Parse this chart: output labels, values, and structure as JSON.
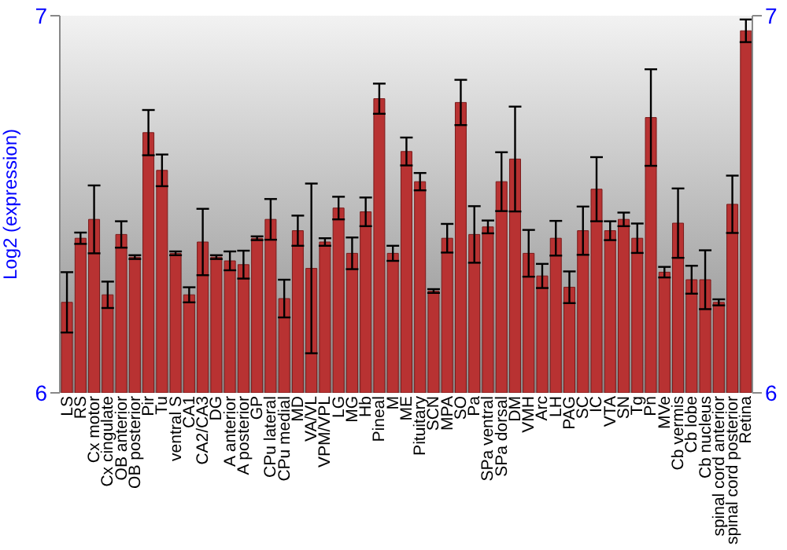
{
  "chart_data": {
    "type": "bar",
    "ylabel": "Log2 (expression)",
    "categories": [
      "LS",
      "RS",
      "Cx motor",
      "Cx cingulate",
      "OB anterior",
      "OB posterior",
      "Pir",
      "Tu",
      "ventral S",
      "CA1",
      "CA2/CA3",
      "DG",
      "A anterior",
      "A posterior",
      "GP",
      "CPu lateral",
      "CPu medial",
      "MD",
      "VA/VL",
      "VPM/VPL",
      "LG",
      "MG",
      "Hb",
      "Pineal",
      "M",
      "ME",
      "Pituitary",
      "SCN",
      "MPA",
      "SO",
      "Pa",
      "SPa ventral",
      "SPa dorsal",
      "DM",
      "VMH",
      "Arc",
      "LH",
      "PAG",
      "SC",
      "IC",
      "VTA",
      "SN",
      "Tg",
      "Pn",
      "MVe",
      "Cb vermis",
      "Cb lobe",
      "Cb nucleus",
      "spinal cord anterior",
      "spinal cord posterior",
      "Retina"
    ],
    "values": [
      6.24,
      6.41,
      6.46,
      6.26,
      6.42,
      6.36,
      6.69,
      6.59,
      6.37,
      6.26,
      6.4,
      6.36,
      6.35,
      6.34,
      6.41,
      6.46,
      6.25,
      6.43,
      6.33,
      6.4,
      6.49,
      6.37,
      6.48,
      6.78,
      6.37,
      6.64,
      6.56,
      6.27,
      6.41,
      6.77,
      6.42,
      6.44,
      6.56,
      6.62,
      6.37,
      6.31,
      6.41,
      6.28,
      6.43,
      6.54,
      6.43,
      6.46,
      6.41,
      6.73,
      6.32,
      6.45,
      6.3,
      6.3,
      6.24,
      6.5,
      6.96
    ],
    "errors": [
      0.08,
      0.015,
      0.09,
      0.035,
      0.035,
      0.005,
      0.06,
      0.042,
      0.005,
      0.02,
      0.088,
      0.005,
      0.025,
      0.037,
      0.005,
      0.054,
      0.05,
      0.04,
      0.225,
      0.01,
      0.03,
      0.042,
      0.038,
      0.04,
      0.02,
      0.037,
      0.023,
      0.005,
      0.038,
      0.06,
      0.075,
      0.017,
      0.078,
      0.139,
      0.062,
      0.032,
      0.046,
      0.042,
      0.064,
      0.085,
      0.025,
      0.018,
      0.039,
      0.128,
      0.014,
      0.092,
      0.037,
      0.078,
      0.008,
      0.076,
      0.03
    ],
    "color": "#b83232",
    "ylim": [
      6,
      7
    ],
    "yticks": [
      6,
      7
    ],
    "y2lim": [
      6,
      7
    ],
    "y2ticks": [
      6,
      7
    ]
  }
}
